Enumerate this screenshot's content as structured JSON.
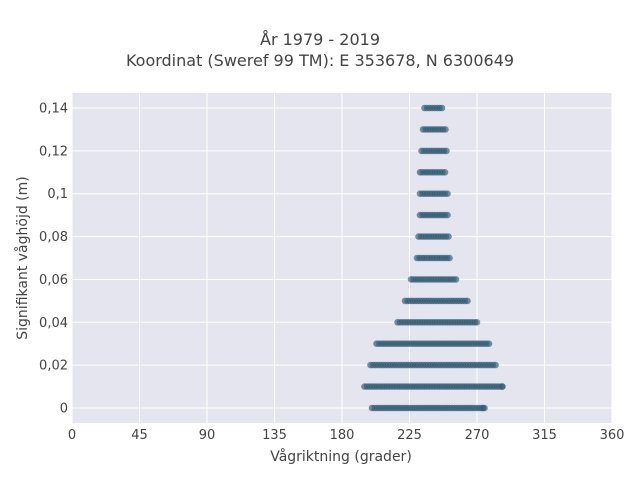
{
  "chart_data": {
    "type": "scatter",
    "title_lines": [
      "År 1979 - 2019",
      "Koordinat (Sweref 99 TM): E 353678, N 6300649"
    ],
    "xlabel": "Vågriktning (grader)",
    "ylabel": "Signifikant våghöjd (m)",
    "xlim": [
      0,
      360
    ],
    "ylim": [
      -0.007,
      0.147
    ],
    "x_ticks": [
      0,
      45,
      90,
      135,
      180,
      225,
      270,
      315,
      360
    ],
    "x_tick_labels": [
      "0",
      "45",
      "90",
      "135",
      "180",
      "225",
      "270",
      "315",
      "360"
    ],
    "y_ticks": [
      0,
      0.02,
      0.04,
      0.06,
      0.08,
      0.1,
      0.12,
      0.14
    ],
    "y_tick_labels": [
      "0",
      "0,02",
      "0,04",
      "0,06",
      "0,08",
      "0,1",
      "0,12",
      "0,14"
    ],
    "grid": true,
    "colors": {
      "marker": "#2f5a73",
      "plot_bg": "#e5e5ef",
      "grid": "#ffffff"
    },
    "bands": [
      {
        "y": 0.0,
        "x_min": 200,
        "x_max": 275
      },
      {
        "y": 0.01,
        "x_min": 195,
        "x_max": 287
      },
      {
        "y": 0.02,
        "x_min": 199,
        "x_max": 283
      },
      {
        "y": 0.03,
        "x_min": 203,
        "x_max": 278
      },
      {
        "y": 0.04,
        "x_min": 217,
        "x_max": 270
      },
      {
        "y": 0.05,
        "x_min": 222,
        "x_max": 264
      },
      {
        "y": 0.06,
        "x_min": 226,
        "x_max": 256
      },
      {
        "y": 0.07,
        "x_min": 230,
        "x_max": 253
      },
      {
        "y": 0.08,
        "x_min": 231,
        "x_max": 252
      },
      {
        "y": 0.09,
        "x_min": 232,
        "x_max": 251
      },
      {
        "y": 0.1,
        "x_min": 232,
        "x_max": 251
      },
      {
        "y": 0.11,
        "x_min": 232,
        "x_max": 250
      },
      {
        "y": 0.12,
        "x_min": 233,
        "x_max": 250
      },
      {
        "y": 0.13,
        "x_min": 234,
        "x_max": 249
      },
      {
        "y": 0.14,
        "x_min": 235,
        "x_max": 247
      }
    ],
    "outliers": [
      {
        "x": 270,
        "y": 0.04
      },
      {
        "x": 274,
        "y": 0.0
      },
      {
        "x": 287,
        "y": 0.01
      }
    ]
  }
}
